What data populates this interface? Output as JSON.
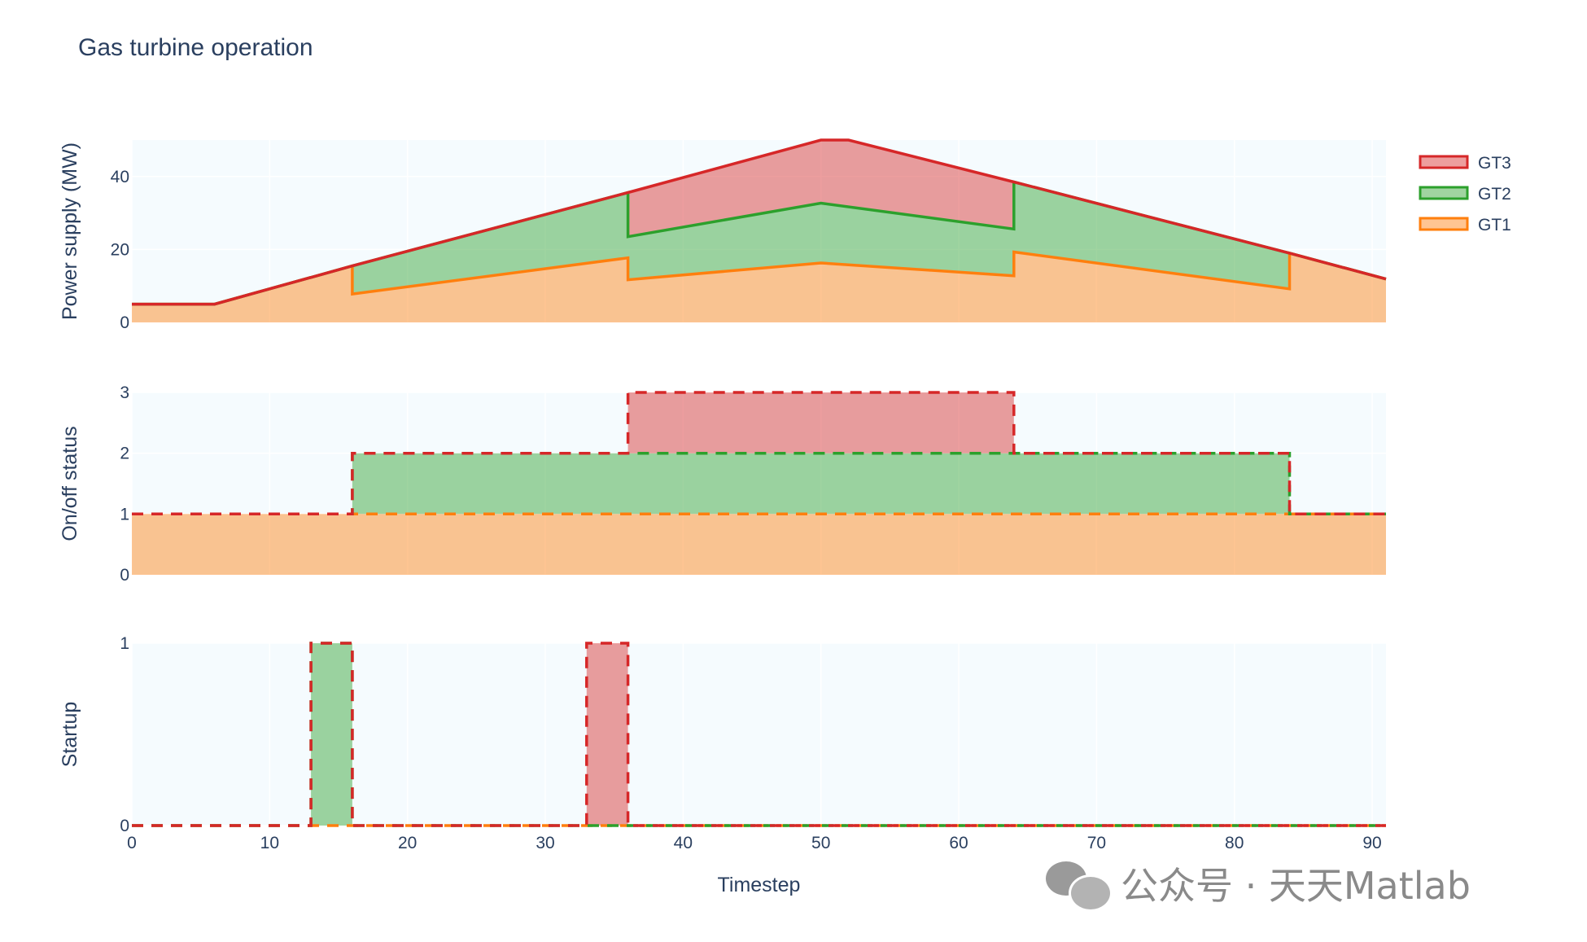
{
  "title": "Gas turbine operation",
  "colors": {
    "GT1": "#ff7f0e",
    "GT2": "#2ca02c",
    "GT3": "#d62728",
    "plot_bg": "#f5fbfe",
    "grid": "#ffffff",
    "text": "#2a3f5f"
  },
  "legend": {
    "placement": "top-right",
    "items": [
      "GT3",
      "GT2",
      "GT1"
    ]
  },
  "watermark": {
    "text": "公众号 · 天天Matlab",
    "icon": "wechat-icon"
  },
  "chart_data": [
    {
      "type": "area",
      "name": "power",
      "ylabel": "Power supply (MW)",
      "xlabel": "",
      "xlim": [
        0,
        91
      ],
      "ylim": [
        0,
        50
      ],
      "yticks": [
        0,
        20,
        40
      ],
      "series": [
        {
          "name": "GT1",
          "points": [
            [
              0,
              5
            ],
            [
              6,
              5
            ],
            [
              16,
              15.5
            ],
            [
              16,
              7.8
            ],
            [
              36,
              17.7
            ],
            [
              36,
              11.7
            ],
            [
              50,
              16.3
            ],
            [
              64,
              12.8
            ],
            [
              64,
              19.3
            ],
            [
              84,
              9.2
            ],
            [
              84,
              19
            ],
            [
              91,
              11.9
            ]
          ]
        },
        {
          "name": "GT2",
          "points": [
            [
              0,
              5
            ],
            [
              6,
              5
            ],
            [
              16,
              15.5
            ],
            [
              36,
              35.6
            ],
            [
              36,
              23.5
            ],
            [
              50,
              32.7
            ],
            [
              64,
              25.6
            ],
            [
              64,
              38.5
            ],
            [
              84,
              19
            ],
            [
              91,
              11.9
            ]
          ]
        },
        {
          "name": "GT3",
          "points": [
            [
              0,
              5
            ],
            [
              6,
              5
            ],
            [
              16,
              15.5
            ],
            [
              36,
              35.6
            ],
            [
              50,
              50
            ],
            [
              52,
              50
            ],
            [
              64,
              38.5
            ],
            [
              84,
              19
            ],
            [
              91,
              11.9
            ]
          ]
        }
      ]
    },
    {
      "type": "area",
      "name": "onoff",
      "ylabel": "On/off status",
      "xlabel": "",
      "xlim": [
        0,
        91
      ],
      "ylim": [
        0,
        3
      ],
      "yticks": [
        0,
        1,
        2,
        3
      ],
      "series": [
        {
          "name": "GT1",
          "points": [
            [
              0,
              1
            ],
            [
              91,
              1
            ]
          ]
        },
        {
          "name": "GT2",
          "points": [
            [
              0,
              1
            ],
            [
              16,
              1
            ],
            [
              16,
              2
            ],
            [
              84,
              2
            ],
            [
              84,
              1
            ],
            [
              91,
              1
            ]
          ]
        },
        {
          "name": "GT3",
          "points": [
            [
              0,
              1
            ],
            [
              16,
              1
            ],
            [
              16,
              2
            ],
            [
              36,
              2
            ],
            [
              36,
              3
            ],
            [
              64,
              3
            ],
            [
              64,
              2
            ],
            [
              84,
              2
            ],
            [
              84,
              1
            ],
            [
              91,
              1
            ]
          ]
        }
      ]
    },
    {
      "type": "area",
      "name": "startup",
      "ylabel": "Startup",
      "xlabel": "Timestep",
      "xlim": [
        0,
        91
      ],
      "ylim": [
        0,
        1
      ],
      "yticks": [
        0,
        1
      ],
      "xticks": [
        0,
        10,
        20,
        30,
        40,
        50,
        60,
        70,
        80,
        90
      ],
      "series": [
        {
          "name": "GT1",
          "points": [
            [
              0,
              0
            ],
            [
              91,
              0
            ]
          ]
        },
        {
          "name": "GT2",
          "points": [
            [
              0,
              0
            ],
            [
              13,
              0
            ],
            [
              13,
              1
            ],
            [
              16,
              1
            ],
            [
              16,
              0
            ],
            [
              91,
              0
            ]
          ]
        },
        {
          "name": "GT3",
          "points": [
            [
              0,
              0
            ],
            [
              13,
              0
            ],
            [
              13,
              1
            ],
            [
              16,
              1
            ],
            [
              16,
              0
            ],
            [
              33,
              0
            ],
            [
              33,
              1
            ],
            [
              36,
              1
            ],
            [
              36,
              0
            ],
            [
              91,
              0
            ]
          ]
        }
      ]
    }
  ]
}
